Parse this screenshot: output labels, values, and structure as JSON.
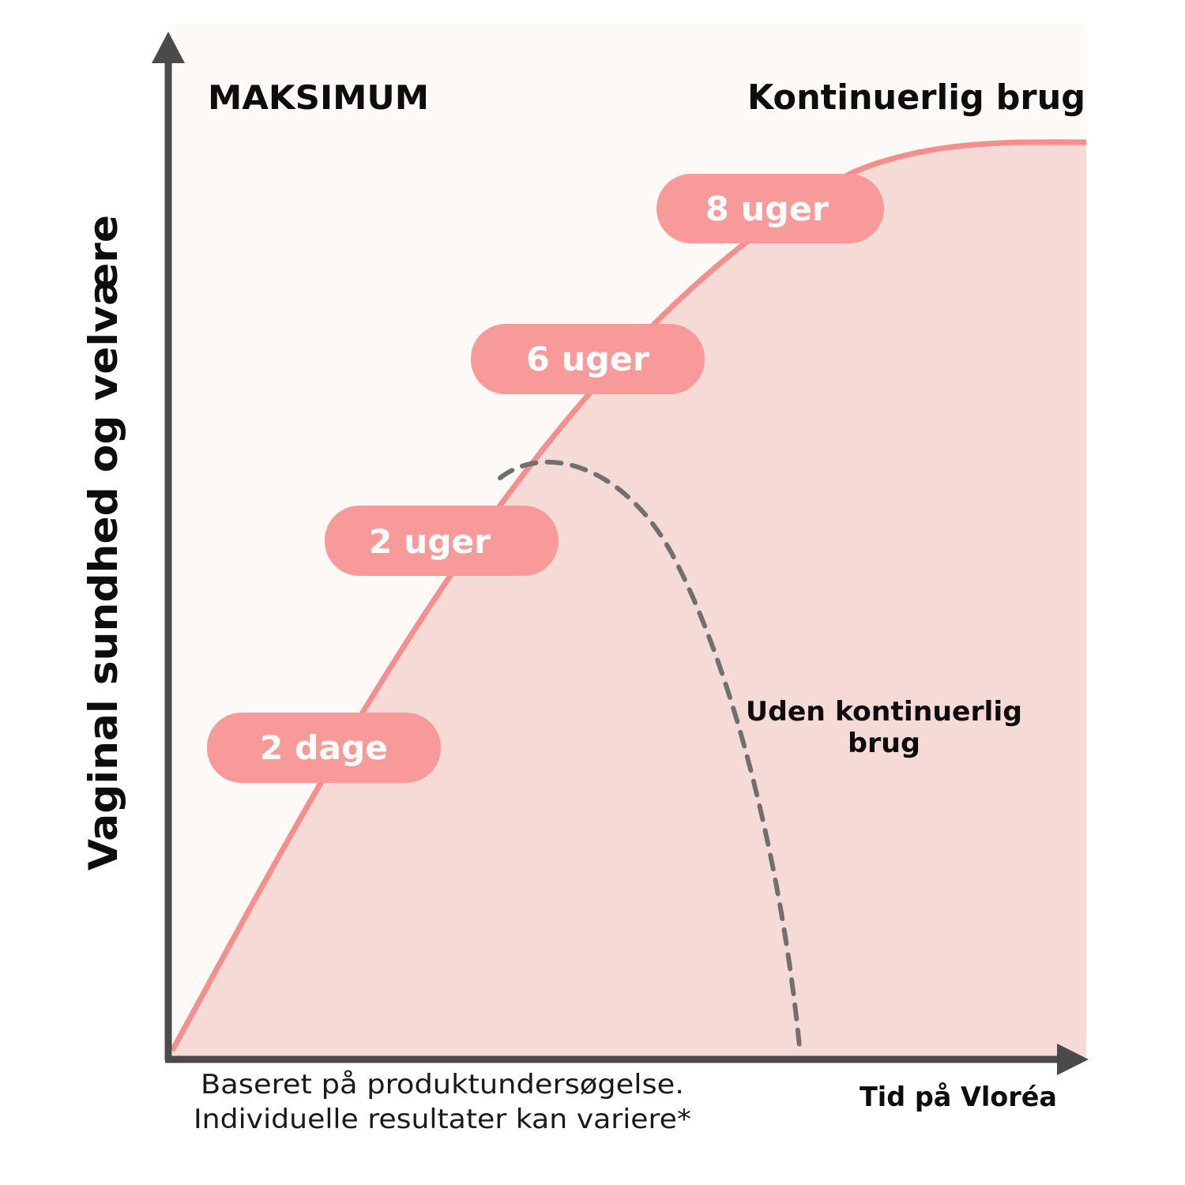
{
  "chart_data": {
    "type": "area",
    "title": "",
    "xlabel": "Tid på Vloréa",
    "ylabel": "Vaginal sundhed og velvære",
    "top_left_label": "MAKSIMUM",
    "top_right_label": "Kontinuerlig brug",
    "grid": false,
    "series": [
      {
        "name": "Kontinuerlig brug",
        "style": "solid-area"
      },
      {
        "name": "Uden kontinuerlig brug",
        "style": "dashed"
      }
    ],
    "dashed_label_line1": "Uden kontinuerlig",
    "dashed_label_line2": "brug",
    "milestones": [
      {
        "label": "2 dage"
      },
      {
        "label": "2 uger"
      },
      {
        "label": "6 uger"
      },
      {
        "label": "8 uger"
      }
    ],
    "footnote_line1": "Baseret på produktundersøgelse.",
    "footnote_line2": "Individuelle resultater kan variere*"
  },
  "colors": {
    "background": "#fdf9f6",
    "area_fill": "#f5dad5",
    "curve": "#f78e8e",
    "pill": "#f89a9a",
    "dashed": "#707070",
    "axis": "#4a4a4a"
  }
}
